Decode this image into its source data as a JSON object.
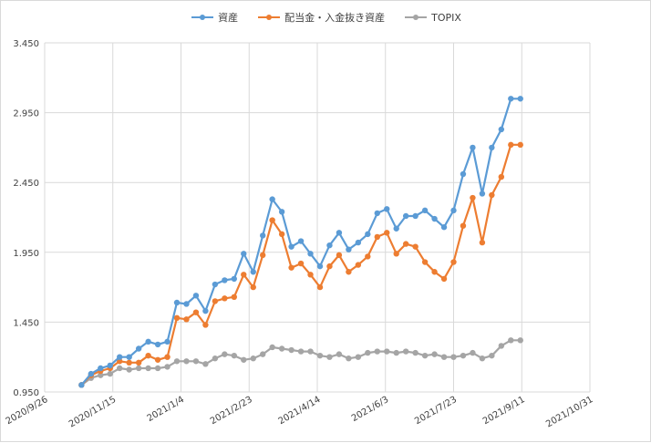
{
  "chart_data": {
    "type": "line",
    "title": "",
    "xlabel": "",
    "ylabel": "",
    "ylim": [
      0.95,
      3.45
    ],
    "xlim": [
      "2020-09-26",
      "2021-10-31"
    ],
    "y_ticks": [
      "0.950",
      "1.450",
      "1.950",
      "2.450",
      "2.950",
      "3.450"
    ],
    "x_ticks": [
      "2020/9/26",
      "2020/11/15",
      "2021/1/4",
      "2021/2/23",
      "2021/4/14",
      "2021/6/3",
      "2021/7/23",
      "2021/9/11",
      "2021/10/31"
    ],
    "grid": {
      "vertical": true,
      "horizontal": true
    },
    "legend_position": "top",
    "x": [
      "2020-10-23",
      "2020-10-30",
      "2020-11-06",
      "2020-11-13",
      "2020-11-20",
      "2020-11-27",
      "2020-12-04",
      "2020-12-11",
      "2020-12-18",
      "2020-12-25",
      "2021-01-01",
      "2021-01-08",
      "2021-01-15",
      "2021-01-22",
      "2021-01-29",
      "2021-02-05",
      "2021-02-12",
      "2021-02-19",
      "2021-02-26",
      "2021-03-05",
      "2021-03-12",
      "2021-03-19",
      "2021-03-26",
      "2021-04-02",
      "2021-04-09",
      "2021-04-16",
      "2021-04-23",
      "2021-04-30",
      "2021-05-07",
      "2021-05-14",
      "2021-05-21",
      "2021-05-28",
      "2021-06-04",
      "2021-06-11",
      "2021-06-18",
      "2021-06-25",
      "2021-07-02",
      "2021-07-09",
      "2021-07-16",
      "2021-07-23",
      "2021-07-30",
      "2021-08-06",
      "2021-08-13",
      "2021-08-20",
      "2021-08-27",
      "2021-09-03",
      "2021-09-10"
    ],
    "series": [
      {
        "name": "資産",
        "color": "#5b9bd5",
        "values": [
          1.0,
          1.08,
          1.12,
          1.14,
          1.2,
          1.2,
          1.26,
          1.31,
          1.29,
          1.31,
          1.59,
          1.58,
          1.64,
          1.53,
          1.72,
          1.75,
          1.76,
          1.94,
          1.81,
          2.07,
          2.33,
          2.24,
          1.99,
          2.03,
          1.94,
          1.85,
          2.0,
          2.09,
          1.97,
          2.02,
          2.08,
          2.23,
          2.26,
          2.12,
          2.21,
          2.21,
          2.25,
          2.19,
          2.13,
          2.25,
          2.51,
          2.7,
          2.37,
          2.7,
          2.83,
          3.05,
          3.05
        ]
      },
      {
        "name": "配当金・入金抜き資産",
        "color": "#ed7d31",
        "values": [
          1.0,
          1.07,
          1.1,
          1.12,
          1.17,
          1.16,
          1.16,
          1.21,
          1.18,
          1.2,
          1.48,
          1.47,
          1.52,
          1.43,
          1.6,
          1.62,
          1.63,
          1.79,
          1.7,
          1.93,
          2.18,
          2.08,
          1.84,
          1.87,
          1.79,
          1.7,
          1.85,
          1.93,
          1.81,
          1.86,
          1.92,
          2.06,
          2.09,
          1.94,
          2.01,
          1.99,
          1.88,
          1.81,
          1.76,
          1.88,
          2.14,
          2.34,
          2.02,
          2.36,
          2.49,
          2.72,
          2.72
        ]
      },
      {
        "name": "TOPIX",
        "color": "#a5a5a5",
        "values": [
          1.0,
          1.05,
          1.07,
          1.08,
          1.12,
          1.11,
          1.12,
          1.12,
          1.12,
          1.13,
          1.17,
          1.17,
          1.17,
          1.15,
          1.19,
          1.22,
          1.21,
          1.18,
          1.19,
          1.22,
          1.27,
          1.26,
          1.25,
          1.24,
          1.24,
          1.21,
          1.2,
          1.22,
          1.19,
          1.2,
          1.23,
          1.24,
          1.24,
          1.23,
          1.24,
          1.23,
          1.21,
          1.22,
          1.2,
          1.2,
          1.21,
          1.23,
          1.19,
          1.21,
          1.28,
          1.32,
          1.32
        ]
      }
    ]
  }
}
